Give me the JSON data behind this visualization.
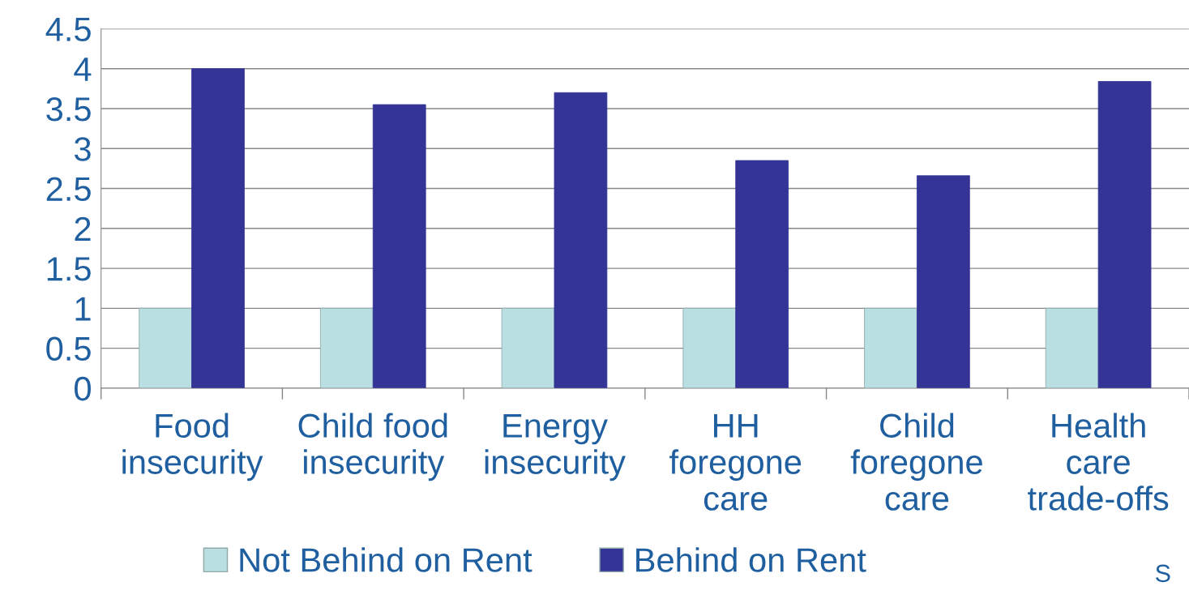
{
  "chart_data": {
    "type": "bar",
    "categories": [
      "Food\ninsecurity",
      "Child food\ninsecurity",
      "Energy\ninsecurity",
      "HH\nforegone\ncare",
      "Child\nforegone\ncare",
      "Health\ncare\ntrade-offs"
    ],
    "series": [
      {
        "name": "Not Behind on Rent",
        "color": "#b9dfe2",
        "values": [
          1,
          1,
          1,
          1,
          1,
          1
        ]
      },
      {
        "name": "Behind on Rent",
        "color": "#343496",
        "values": [
          4.0,
          3.55,
          3.7,
          2.85,
          2.66,
          3.84
        ]
      }
    ],
    "ylim": [
      0,
      4.5
    ],
    "yticks": [
      0,
      0.5,
      1,
      1.5,
      2,
      2.5,
      3,
      3.5,
      4,
      4.5
    ],
    "grid": "y",
    "legend": "bottom",
    "annotations": [
      "S"
    ]
  }
}
